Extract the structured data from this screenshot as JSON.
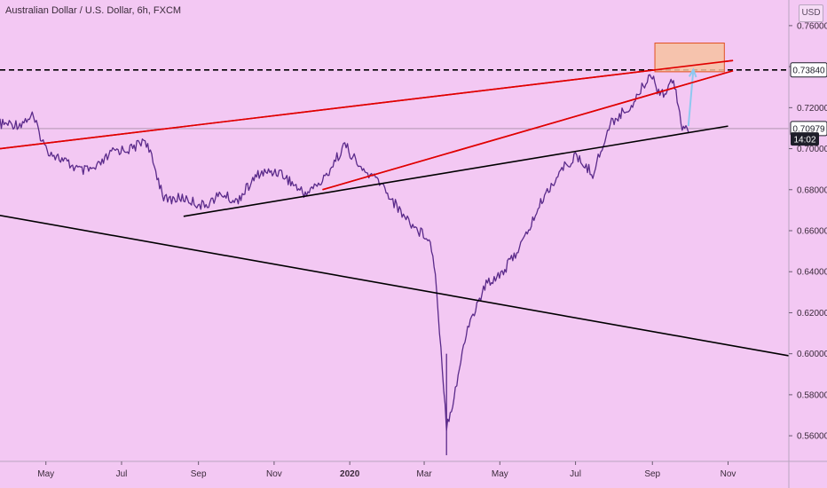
{
  "title": "Australian Dollar / U.S. Dollar, 6h, FXCM",
  "currency_button": "USD",
  "colors": {
    "background": "#f3c8f3",
    "candles": "#5a2a8a",
    "red_line": "#e00000",
    "black_line": "#000000",
    "arrow": "#8ec8f0",
    "box_fill": "#f6c2a0",
    "box_stroke": "#e05020"
  },
  "chart_data": {
    "type": "line",
    "title": "Australian Dollar / U.S. Dollar, 6h, FXCM",
    "y_ticks": [
      "0.76000",
      "0.74000",
      "0.72000",
      "0.70000",
      "0.68000",
      "0.66000",
      "0.64000",
      "0.62000",
      "0.60000",
      "0.58000",
      "0.56000"
    ],
    "y_tick_values": [
      0.76,
      0.74,
      0.72,
      0.7,
      0.68,
      0.66,
      0.64,
      0.62,
      0.6,
      0.58,
      0.56
    ],
    "ylim": [
      0.5475,
      0.7725
    ],
    "x_ticks": [
      "May",
      "Jul",
      "Sep",
      "Nov",
      "2020",
      "Mar",
      "May",
      "Jul",
      "Sep",
      "Nov"
    ],
    "x_tick_dates": [
      "2019-05-01",
      "2019-07-01",
      "2019-09-01",
      "2019-11-01",
      "2020-01-01",
      "2020-03-01",
      "2020-05-01",
      "2020-07-01",
      "2020-09-01",
      "2020-11-01"
    ],
    "xlim": [
      "2019-03-25",
      "2020-12-20"
    ],
    "price_series": {
      "name": "AUDUSD",
      "x": [
        "2019-03-25",
        "2019-04-10",
        "2019-04-20",
        "2019-05-01",
        "2019-05-15",
        "2019-05-30",
        "2019-06-10",
        "2019-06-25",
        "2019-07-10",
        "2019-07-20",
        "2019-08-05",
        "2019-08-20",
        "2019-09-05",
        "2019-09-20",
        "2019-10-01",
        "2019-10-20",
        "2019-11-05",
        "2019-11-25",
        "2019-12-10",
        "2019-12-28",
        "2020-01-10",
        "2020-01-25",
        "2020-02-10",
        "2020-02-25",
        "2020-03-05",
        "2020-03-10",
        "2020-03-19",
        "2020-03-24",
        "2020-04-05",
        "2020-04-20",
        "2020-05-05",
        "2020-05-20",
        "2020-06-05",
        "2020-06-20",
        "2020-07-01",
        "2020-07-15",
        "2020-07-30",
        "2020-08-15",
        "2020-08-31",
        "2020-09-05",
        "2020-09-12",
        "2020-09-18",
        "2020-09-25",
        "2020-09-30"
      ],
      "y": [
        0.712,
        0.712,
        0.716,
        0.7,
        0.694,
        0.689,
        0.69,
        0.699,
        0.7,
        0.705,
        0.675,
        0.676,
        0.672,
        0.678,
        0.674,
        0.688,
        0.689,
        0.678,
        0.684,
        0.702,
        0.69,
        0.684,
        0.67,
        0.66,
        0.657,
        0.64,
        0.565,
        0.576,
        0.613,
        0.634,
        0.641,
        0.655,
        0.676,
        0.69,
        0.696,
        0.688,
        0.713,
        0.721,
        0.737,
        0.729,
        0.727,
        0.735,
        0.711,
        0.708
      ]
    },
    "lines": [
      {
        "name": "",
        "kind": "trendline",
        "color": "#e00000",
        "points": [
          [
            "2019-03-25",
            0.7
          ],
          [
            "2020-11-05",
            0.743
          ]
        ]
      },
      {
        "name": "",
        "kind": "trendline",
        "color": "#e00000",
        "points": [
          [
            "2019-12-10",
            0.68
          ],
          [
            "2020-11-05",
            0.738
          ]
        ]
      },
      {
        "name": "",
        "kind": "trendline",
        "color": "#000000",
        "points": [
          [
            "2019-08-20",
            0.667
          ],
          [
            "2020-11-01",
            0.711
          ]
        ]
      },
      {
        "name": "",
        "kind": "trendline",
        "color": "#000000",
        "points": [
          [
            "2019-03-20",
            0.668
          ],
          [
            "2020-12-20",
            0.599
          ]
        ]
      }
    ],
    "hlines": [
      {
        "name": "",
        "style": "dashed",
        "color": "#000000",
        "y": 0.7384
      },
      {
        "name": "",
        "style": "thin",
        "color": "#8a7a8a",
        "y": 0.70979
      }
    ],
    "price_labels": [
      {
        "text": "0.73840",
        "y": 0.7384,
        "style": "outline"
      },
      {
        "text": "0.70979",
        "y": 0.70979,
        "style": "outline"
      },
      {
        "text": "14:02",
        "y": 0.7045,
        "style": "dark"
      }
    ],
    "annotations": [
      {
        "kind": "box",
        "x": [
          "2020-09-03",
          "2020-10-29"
        ],
        "y": [
          0.7375,
          0.7515
        ]
      },
      {
        "kind": "arrow",
        "from": [
          "2020-09-30",
          0.711
        ],
        "to": [
          "2020-10-04",
          0.7385
        ]
      }
    ],
    "grid": false,
    "legend": "none"
  }
}
